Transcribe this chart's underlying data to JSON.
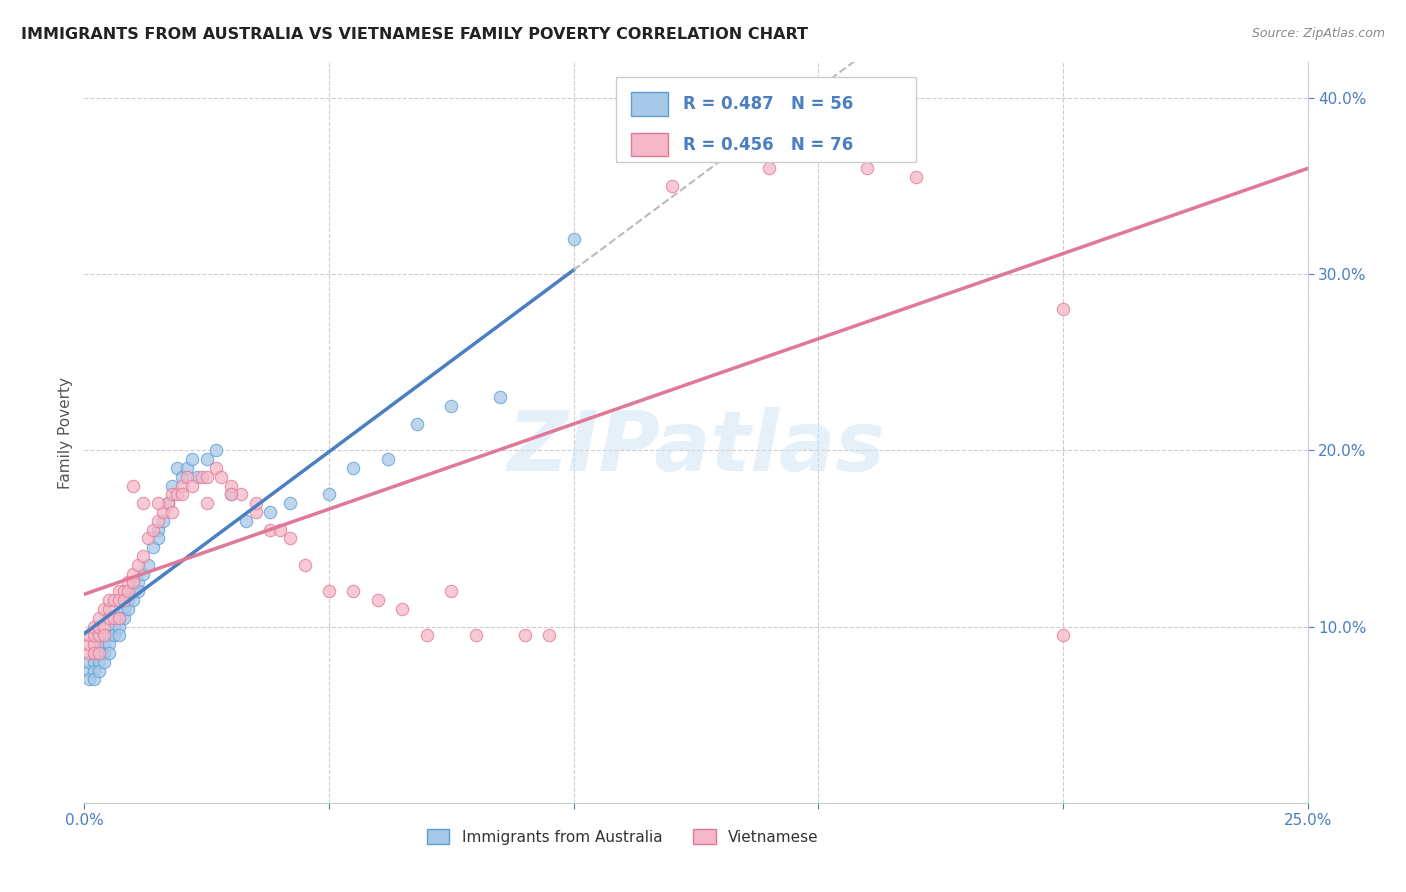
{
  "title": "IMMIGRANTS FROM AUSTRALIA VS VIETNAMESE FAMILY POVERTY CORRELATION CHART",
  "source": "Source: ZipAtlas.com",
  "ylabel": "Family Poverty",
  "xlim": [
    0.0,
    0.25
  ],
  "ylim": [
    0.0,
    0.42
  ],
  "x_tick_positions": [
    0.0,
    0.05,
    0.1,
    0.15,
    0.2,
    0.25
  ],
  "x_tick_labels": [
    "0.0%",
    "",
    "",
    "",
    "",
    "25.0%"
  ],
  "y_tick_positions": [
    0.1,
    0.2,
    0.3,
    0.4
  ],
  "y_tick_labels": [
    "10.0%",
    "20.0%",
    "30.0%",
    "40.0%"
  ],
  "color_blue_fill": "#a8c8e8",
  "color_blue_edge": "#5a9fd4",
  "color_pink_fill": "#f4b8c8",
  "color_pink_edge": "#e07898",
  "color_blue_line": "#4a7fc1",
  "color_pink_line": "#e07898",
  "color_dashed": "#bbbbbb",
  "legend_color": "#4a7fc1",
  "watermark": "ZIPatlas",
  "legend_label_blue": "Immigrants from Australia",
  "legend_label_pink": "Vietnamese",
  "legend_r1": "R = 0.487",
  "legend_n1": "N = 56",
  "legend_r2": "R = 0.456",
  "legend_n2": "N = 76",
  "blue_x": [
    0.001,
    0.001,
    0.001,
    0.002,
    0.002,
    0.002,
    0.002,
    0.003,
    0.003,
    0.003,
    0.003,
    0.004,
    0.004,
    0.004,
    0.005,
    0.005,
    0.005,
    0.006,
    0.006,
    0.007,
    0.007,
    0.007,
    0.008,
    0.008,
    0.009,
    0.009,
    0.01,
    0.01,
    0.011,
    0.011,
    0.012,
    0.013,
    0.014,
    0.015,
    0.015,
    0.016,
    0.017,
    0.018,
    0.019,
    0.02,
    0.021,
    0.022,
    0.023,
    0.025,
    0.027,
    0.03,
    0.033,
    0.038,
    0.042,
    0.05,
    0.055,
    0.062,
    0.068,
    0.075,
    0.085,
    0.1
  ],
  "blue_y": [
    0.075,
    0.08,
    0.07,
    0.085,
    0.08,
    0.075,
    0.07,
    0.09,
    0.085,
    0.08,
    0.075,
    0.09,
    0.085,
    0.08,
    0.095,
    0.09,
    0.085,
    0.1,
    0.095,
    0.105,
    0.1,
    0.095,
    0.11,
    0.105,
    0.115,
    0.11,
    0.12,
    0.115,
    0.125,
    0.12,
    0.13,
    0.135,
    0.145,
    0.155,
    0.15,
    0.16,
    0.17,
    0.18,
    0.19,
    0.185,
    0.19,
    0.195,
    0.185,
    0.195,
    0.2,
    0.175,
    0.16,
    0.165,
    0.17,
    0.175,
    0.19,
    0.195,
    0.215,
    0.225,
    0.23,
    0.32
  ],
  "pink_x": [
    0.001,
    0.001,
    0.001,
    0.002,
    0.002,
    0.002,
    0.002,
    0.003,
    0.003,
    0.003,
    0.003,
    0.004,
    0.004,
    0.004,
    0.005,
    0.005,
    0.005,
    0.006,
    0.006,
    0.007,
    0.007,
    0.007,
    0.008,
    0.008,
    0.009,
    0.009,
    0.01,
    0.01,
    0.011,
    0.012,
    0.013,
    0.014,
    0.015,
    0.016,
    0.017,
    0.018,
    0.019,
    0.02,
    0.021,
    0.022,
    0.024,
    0.025,
    0.027,
    0.028,
    0.03,
    0.032,
    0.035,
    0.038,
    0.04,
    0.042,
    0.045,
    0.05,
    0.055,
    0.06,
    0.065,
    0.07,
    0.075,
    0.08,
    0.09,
    0.095,
    0.01,
    0.012,
    0.015,
    0.018,
    0.02,
    0.025,
    0.03,
    0.035,
    0.12,
    0.13,
    0.14,
    0.15,
    0.16,
    0.17,
    0.2,
    0.2
  ],
  "pink_y": [
    0.085,
    0.09,
    0.095,
    0.09,
    0.095,
    0.1,
    0.085,
    0.095,
    0.1,
    0.105,
    0.085,
    0.1,
    0.11,
    0.095,
    0.105,
    0.11,
    0.115,
    0.115,
    0.105,
    0.12,
    0.115,
    0.105,
    0.12,
    0.115,
    0.125,
    0.12,
    0.13,
    0.125,
    0.135,
    0.14,
    0.15,
    0.155,
    0.16,
    0.165,
    0.17,
    0.175,
    0.175,
    0.18,
    0.185,
    0.18,
    0.185,
    0.185,
    0.19,
    0.185,
    0.18,
    0.175,
    0.165,
    0.155,
    0.155,
    0.15,
    0.135,
    0.12,
    0.12,
    0.115,
    0.11,
    0.095,
    0.12,
    0.095,
    0.095,
    0.095,
    0.18,
    0.17,
    0.17,
    0.165,
    0.175,
    0.17,
    0.175,
    0.17,
    0.35,
    0.37,
    0.36,
    0.38,
    0.36,
    0.355,
    0.095,
    0.28
  ]
}
